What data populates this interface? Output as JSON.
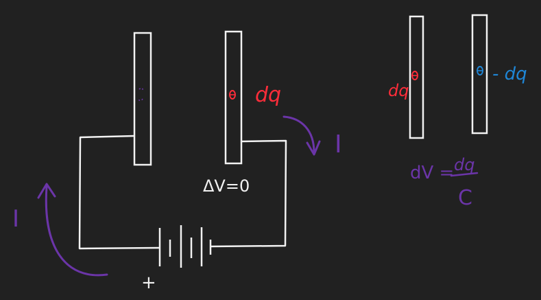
{
  "colors": {
    "background": "#212121",
    "ink": "#f2f2f2",
    "positive": "#ff2d3a",
    "negative": "#1f86d6",
    "annotation": "#6b35a8"
  },
  "labels": {
    "left_plate_charge": "dq",
    "current_right": "I",
    "current_left": "I",
    "delta_v": "ΔV=0",
    "battery_plus": "+",
    "isolated_left_charge": "dq",
    "isolated_right_charge": "- dq",
    "dv_lhs": "dV =",
    "dv_numerator": "dq",
    "dv_denominator": "C"
  }
}
